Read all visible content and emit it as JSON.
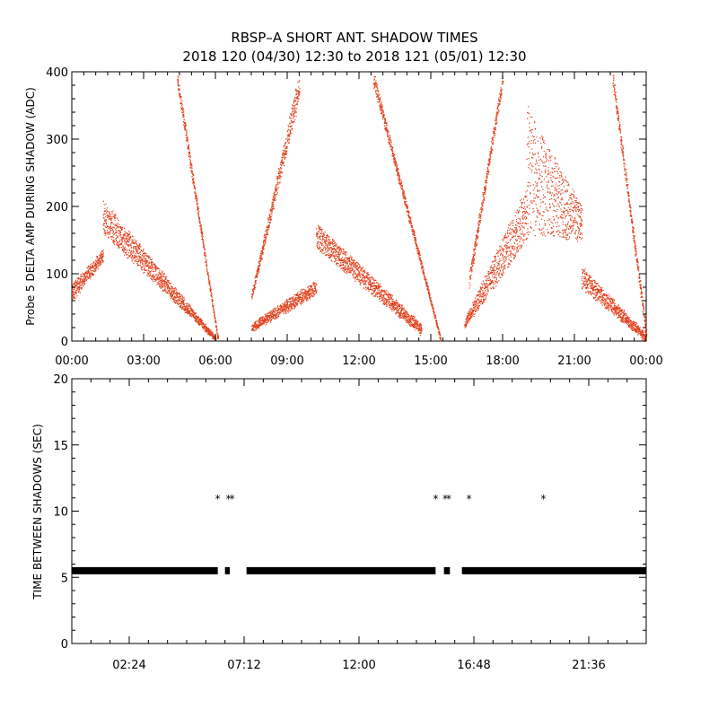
{
  "title_line1": "RBSP–A SHORT ANT. SHADOW TIMES",
  "title_line2": "2018 120 (04/30) 12:30 to 2018 121 (05/01) 12:30",
  "colors": {
    "series_top": "#e0401c",
    "series_bottom": "#000000"
  },
  "chart_data": [
    {
      "type": "scatter",
      "ylabel": "Probe 5 DELTA AMP DURING SHADOW (ADC)",
      "xlim": [
        0,
        24
      ],
      "ylim": [
        0,
        400
      ],
      "x_tick_labels": [
        "00:00",
        "03:00",
        "06:00",
        "09:00",
        "12:00",
        "15:00",
        "18:00",
        "21:00",
        "00:00"
      ],
      "y_tick_labels": [
        "0",
        "100",
        "200",
        "300",
        "400"
      ],
      "grid": false,
      "segments": [
        {
          "x_start": 0.0,
          "x_end": 1.3,
          "y_upper": [
            85,
            135
          ],
          "y_lower": [
            60,
            120
          ]
        },
        {
          "x_start": 1.3,
          "x_end": 6.0,
          "y_upper": [
            210,
            5
          ],
          "y_lower": [
            160,
            2
          ]
        },
        {
          "x_start": 4.4,
          "x_end": 6.1,
          "y_upper": [
            400,
            5
          ],
          "y_lower": [
            380,
            2
          ]
        },
        {
          "x_start": 7.5,
          "x_end": 10.2,
          "y_upper": [
            25,
            90
          ],
          "y_lower": [
            15,
            70
          ]
        },
        {
          "x_start": 7.5,
          "x_end": 9.5,
          "y_upper": [
            70,
            400
          ],
          "y_lower": [
            60,
            360
          ]
        },
        {
          "x_start": 10.2,
          "x_end": 14.6,
          "y_upper": [
            175,
            25
          ],
          "y_lower": [
            140,
            10
          ]
        },
        {
          "x_start": 12.6,
          "x_end": 15.4,
          "y_upper": [
            400,
            5
          ],
          "y_lower": [
            380,
            2
          ]
        },
        {
          "x_start": 16.4,
          "x_end": 19.0,
          "y_upper": [
            30,
            230
          ],
          "y_lower": [
            20,
            150
          ]
        },
        {
          "x_start": 16.6,
          "x_end": 18.0,
          "y_upper": [
            100,
            400
          ],
          "y_lower": [
            80,
            380
          ]
        },
        {
          "x_start": 19.0,
          "x_end": 21.3,
          "y_upper": [
            350,
            200
          ],
          "y_lower": [
            160,
            150
          ]
        },
        {
          "x_start": 21.3,
          "x_end": 24.0,
          "y_upper": [
            110,
            10
          ],
          "y_lower": [
            80,
            0
          ]
        },
        {
          "x_start": 22.6,
          "x_end": 24.0,
          "y_upper": [
            400,
            20
          ],
          "y_lower": [
            380,
            5
          ]
        }
      ]
    },
    {
      "type": "scatter",
      "ylabel": "TIME BETWEEN SHADOWS (SEC)",
      "xlim": [
        0,
        24
      ],
      "ylim": [
        0,
        20
      ],
      "x_tick_labels": [
        "02:24",
        "07:12",
        "12:00",
        "16:48",
        "21:36"
      ],
      "x_tick_values": [
        2.4,
        7.2,
        12.0,
        16.8,
        21.6
      ],
      "y_tick_labels": [
        "0",
        "5",
        "10",
        "15",
        "20"
      ],
      "grid": false,
      "baseline_value": 5.5,
      "baseline_ranges": [
        [
          0.0,
          6.1
        ],
        [
          6.4,
          6.6
        ],
        [
          7.3,
          15.2
        ],
        [
          15.55,
          15.8
        ],
        [
          16.3,
          24.0
        ]
      ],
      "points": [
        {
          "x": 6.1,
          "y": 11
        },
        {
          "x": 6.55,
          "y": 11
        },
        {
          "x": 6.7,
          "y": 11
        },
        {
          "x": 15.2,
          "y": 11
        },
        {
          "x": 15.6,
          "y": 11
        },
        {
          "x": 15.75,
          "y": 11
        },
        {
          "x": 16.6,
          "y": 11
        },
        {
          "x": 19.7,
          "y": 11
        }
      ]
    }
  ]
}
